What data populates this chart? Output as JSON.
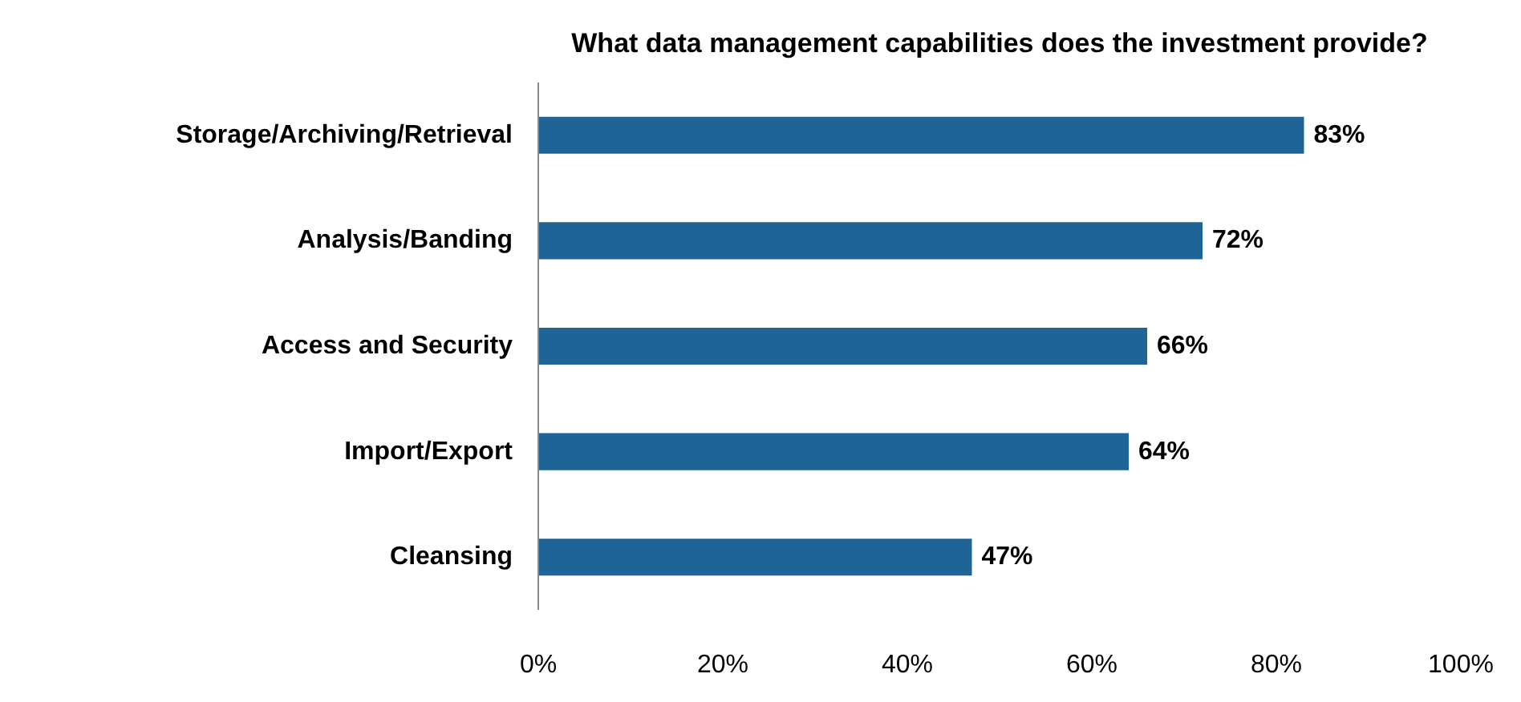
{
  "chart_data": {
    "type": "bar",
    "orientation": "horizontal",
    "title": "What data management capabilities does the investment provide?",
    "categories": [
      "Storage/Archiving/Retrieval",
      "Analysis/Banding",
      "Access and Security",
      "Import/Export",
      "Cleansing"
    ],
    "values": [
      83,
      72,
      66,
      64,
      47
    ],
    "value_labels": [
      "83%",
      "72%",
      "66%",
      "64%",
      "47%"
    ],
    "color": "#1f6496",
    "xlim": [
      0,
      100
    ],
    "xticks": [
      {
        "value": 0,
        "label": "0%"
      },
      {
        "value": 20,
        "label": "20%"
      },
      {
        "value": 40,
        "label": "40%"
      },
      {
        "value": 60,
        "label": "60%"
      },
      {
        "value": 80,
        "label": "80%"
      },
      {
        "value": 100,
        "label": "100%"
      }
    ],
    "grid": false
  }
}
